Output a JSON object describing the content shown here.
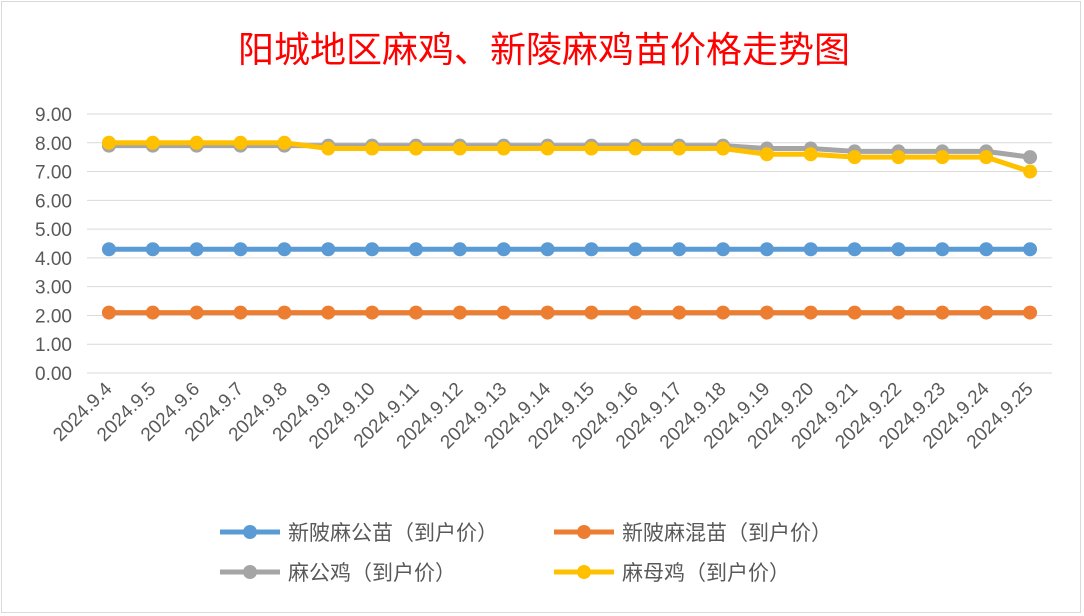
{
  "chart_data": {
    "type": "line",
    "title": "阳城地区麻鸡、新陵麻鸡苗价格走势图",
    "title_color": "#ff0000",
    "xlabel": "",
    "ylabel": "",
    "ylim": [
      0,
      9
    ],
    "y_ticks": [
      "0.00",
      "1.00",
      "2.00",
      "3.00",
      "4.00",
      "5.00",
      "6.00",
      "7.00",
      "8.00",
      "9.00"
    ],
    "grid": true,
    "legend_position": "bottom",
    "categories": [
      "2024.9.4",
      "2024.9.5",
      "2024.9.6",
      "2024.9.7",
      "2024.9.8",
      "2024.9.9",
      "2024.9.10",
      "2024.9.11",
      "2024.9.12",
      "2024.9.13",
      "2024.9.14",
      "2024.9.15",
      "2024.9.16",
      "2024.9.17",
      "2024.9.18",
      "2024.9.19",
      "2024.9.20",
      "2024.9.21",
      "2024.9.22",
      "2024.9.23",
      "2024.9.24",
      "2024.9.25"
    ],
    "series": [
      {
        "name": "新陂麻公苗（到户价）",
        "color": "#5b9bd5",
        "values": [
          4.3,
          4.3,
          4.3,
          4.3,
          4.3,
          4.3,
          4.3,
          4.3,
          4.3,
          4.3,
          4.3,
          4.3,
          4.3,
          4.3,
          4.3,
          4.3,
          4.3,
          4.3,
          4.3,
          4.3,
          4.3,
          4.3
        ]
      },
      {
        "name": "新陂麻混苗（到户价）",
        "color": "#ed7d31",
        "values": [
          2.1,
          2.1,
          2.1,
          2.1,
          2.1,
          2.1,
          2.1,
          2.1,
          2.1,
          2.1,
          2.1,
          2.1,
          2.1,
          2.1,
          2.1,
          2.1,
          2.1,
          2.1,
          2.1,
          2.1,
          2.1,
          2.1
        ]
      },
      {
        "name": "麻公鸡（到户价）",
        "color": "#a5a5a5",
        "values": [
          7.9,
          7.9,
          7.9,
          7.9,
          7.9,
          7.9,
          7.9,
          7.9,
          7.9,
          7.9,
          7.9,
          7.9,
          7.9,
          7.9,
          7.9,
          7.8,
          7.8,
          7.7,
          7.7,
          7.7,
          7.7,
          7.5
        ]
      },
      {
        "name": "麻母鸡（到户价）",
        "color": "#ffc000",
        "values": [
          8.0,
          8.0,
          8.0,
          8.0,
          8.0,
          7.8,
          7.8,
          7.8,
          7.8,
          7.8,
          7.8,
          7.8,
          7.8,
          7.8,
          7.8,
          7.6,
          7.6,
          7.5,
          7.5,
          7.5,
          7.5,
          7.0
        ]
      }
    ]
  }
}
